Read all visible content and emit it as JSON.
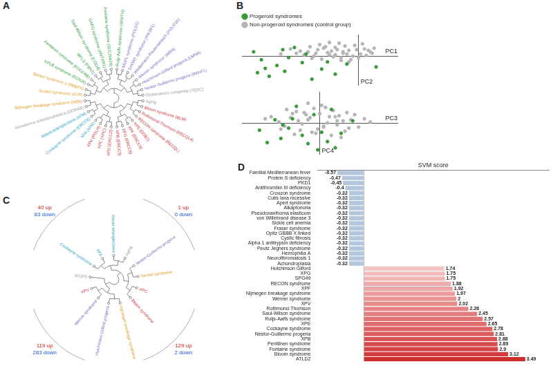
{
  "panel_labels": [
    "A",
    "B",
    "C",
    "D"
  ],
  "dendrograms": [
    {
      "leaves": [
        {
          "label": "Seckel syndrome (ATR)",
          "color": "#e0a020"
        },
        {
          "label": "Seckel syndrome 2 (RBBP8)",
          "color": "#e0a020"
        },
        {
          "label": "KPLB syndrome (KCNJ6)",
          "color": "#2e9e3e"
        },
        {
          "label": "Penttinen syndrome (PDGFRB)",
          "color": "#2e9e3e"
        },
        {
          "label": "MFLS (FBN1)",
          "color": "#2e9e3e"
        },
        {
          "label": "Saul-Wilson syndrome (COG4)",
          "color": "#2e9e3e"
        },
        {
          "label": "GAPO syndrome (ANTXR1)",
          "color": "#2e9e3e"
        },
        {
          "label": "Fontaine syndrome (SLC25A24)",
          "color": "#2e9e3e"
        },
        {
          "label": "Ruijs-Aalfs syndrome (SPRTN)",
          "color": "#2e9e3e"
        },
        {
          "label": "MDPL syndrome (POLD1)",
          "color": "#7b6fc4"
        },
        {
          "label": "SHORT syndrome (PIK3R1)",
          "color": "#7b6fc4"
        },
        {
          "label": "Wiedemann-Rautenstrauch (POLR3A)",
          "color": "#7b6fc4"
        },
        {
          "label": "Werner syndrome (WRN)",
          "color": "#7b6fc4"
        },
        {
          "label": "Hutchinson-Gilford progeria (LMNA)",
          "color": "#7b6fc4"
        },
        {
          "label": "Nestor-Guillermo progeria (BANF1)",
          "color": "#7b6fc4"
        },
        {
          "label": "Dyskeratosis congenita (TERC)",
          "color": "#a0a0a0"
        },
        {
          "label": "Aging",
          "color": "#a0a0a0"
        },
        {
          "label": "Bloom syndrome (BLM)",
          "color": "#c8323c"
        },
        {
          "label": "Rothmund-Thomson (RECQL4)",
          "color": "#c8323c"
        },
        {
          "label": "RECON syndrome (RECQL)",
          "color": "#c8323c"
        },
        {
          "label": "XPE (DDB2)",
          "color": "#c8323c"
        },
        {
          "label": "XPF (ERCC4)",
          "color": "#c8323c"
        },
        {
          "label": "XPG (ERCC5)",
          "color": "#c8323c"
        },
        {
          "label": "XPB (ERCC3)",
          "color": "#c8323c"
        },
        {
          "label": "XPD (ERCC2)",
          "color": "#c8323c"
        },
        {
          "label": "XPC (XPC)",
          "color": "#c8323c"
        },
        {
          "label": "XPV (POLH)",
          "color": "#c8323c"
        },
        {
          "label": "XPA (XPA)",
          "color": "#2aa4c8"
        },
        {
          "label": "Cockayne syndrome (ERCC8)",
          "color": "#2aa4c8"
        },
        {
          "label": "Ataxia-telangiectasia (ATM)",
          "color": "#2aa4c8"
        },
        {
          "label": "Geroderma osteodysplastica (GORAB)",
          "color": "#a0a0a0"
        },
        {
          "label": "Nijmegen breakage syndrome (NBN)",
          "color": "#e0a020"
        }
      ]
    },
    {
      "leaves": [
        {
          "label": "Cockayne syndrome",
          "color": "#2aa4c8"
        },
        {
          "label": "XPA",
          "color": "#2aa4c8"
        },
        {
          "label": "Ataxia-telangiectasia",
          "color": "#2aa4c8"
        },
        {
          "label": "Aging",
          "color": "#a0a0a0"
        },
        {
          "label": "Nestor-Guillermo progeria",
          "color": "#7b6fc4"
        },
        {
          "label": "Seckel syndrome",
          "color": "#e0a020"
        },
        {
          "label": "XPC",
          "color": "#c8323c"
        },
        {
          "label": "Bloom syndrome",
          "color": "#c8323c"
        },
        {
          "label": "Nijmegen breakage syndrome",
          "color": "#e0a020"
        },
        {
          "label": "Hutchinson-Gilford progeria",
          "color": "#7b6fc4"
        },
        {
          "label": "Werner syndrome",
          "color": "#7b6fc4"
        },
        {
          "label": "XPV",
          "color": "#c8323c"
        },
        {
          "label": "BIOFS",
          "color": "#a0a0a0"
        }
      ],
      "annotations": [
        {
          "up": "40 up",
          "down": "83 down"
        },
        {
          "up": "1 up",
          "down": "0 down"
        },
        {
          "up": "119 up",
          "down": "283 down"
        },
        {
          "up": "129 up",
          "down": "2 down"
        }
      ]
    }
  ],
  "chart_data": [
    {
      "type": "scatter",
      "x_label": "PC1",
      "y_label": "PC2",
      "xlim": [
        -6,
        2
      ],
      "ylim": [
        -4,
        3
      ],
      "xticks": [
        0
      ],
      "yticks": [
        0
      ],
      "tick_labels": false,
      "grid": false,
      "legend": "top-left",
      "series": [
        {
          "name": "Progeroid syndromes",
          "color": "#3a9a3a",
          "x": [
            -5.0,
            -4.2,
            -3.8,
            -2.9,
            -4.6,
            -3.3,
            -1.9,
            -5.4,
            -2.4,
            -3.6,
            -1.2,
            -4.8,
            -2.7,
            -0.6,
            -3.9,
            -1.6,
            -5.2,
            0.9
          ],
          "values": [
            -0.5,
            -1.3,
            -2.1,
            -0.9,
            -2.8,
            1.2,
            -1.8,
            0.6,
            -3.2,
            -0.2,
            -2.5,
            -1.7,
            0.3,
            -1.1,
            0.9,
            -0.8,
            -2.3,
            -1.5
          ]
        },
        {
          "name": "Non-progeroid syndromes (control group)",
          "color": "#b5b5b5",
          "x": [
            -0.5,
            -1.2,
            -0.8,
            0.3,
            -2.1,
            -1.5,
            0.6,
            -0.2,
            -3.0,
            -1.8,
            -0.9,
            0.1,
            -2.5,
            -1.1,
            0.8,
            -0.4,
            -1.6,
            -2.8,
            -0.7,
            0.4,
            -1.3,
            -2.2,
            -0.1,
            -3.5,
            -1.9,
            0.2,
            -0.6,
            -1.0,
            -2.4,
            -1.4,
            0.5,
            -0.3,
            -2.0,
            -1.7,
            -0.8,
            -3.2,
            -1.2,
            0.0,
            -2.6,
            -0.5,
            -4.0,
            -1.5,
            -0.9,
            -2.3,
            0.7
          ],
          "values": [
            0.8,
            1.2,
            0.4,
            1.0,
            0.9,
            0.2,
            0.6,
            1.5,
            0.7,
            1.1,
            -0.2,
            0.3,
            1.3,
            0.9,
            1.1,
            -0.5,
            0.5,
            0.2,
            1.4,
            0.1,
            -0.1,
            0.4,
            0.9,
            1.0,
            -0.4,
            1.7,
            0.3,
            1.8,
            -0.3,
            0.7,
            0.8,
            0.0,
            1.6,
            1.3,
            0.6,
            0.4,
            0.2,
            -0.2,
            0.6,
            -0.8,
            0.3,
            1.9,
            -0.6,
            0.0,
            0.4
          ]
        }
      ]
    },
    {
      "type": "scatter",
      "x_label": "PC3",
      "y_label": "PC4",
      "xlim": [
        -4,
        4
      ],
      "ylim": [
        -3,
        3
      ],
      "xticks": [
        0
      ],
      "yticks": [
        0
      ],
      "tick_labels": false,
      "grid": false,
      "series": [
        {
          "name": "Progeroid syndromes",
          "color": "#3a9a3a",
          "x": [
            -0.9,
            -1.6,
            0.4,
            -2.3,
            -0.3,
            1.1,
            -1.2,
            -3.1,
            0.8,
            -0.6,
            -2.0,
            1.7,
            -1.4,
            0.1,
            -2.7,
            0.6,
            -0.1,
            -1.9
          ],
          "values": [
            -1.2,
            -0.5,
            -1.8,
            0.3,
            0.8,
            -1.0,
            1.6,
            -0.7,
            -2.4,
            -2.0,
            -1.5,
            0.2,
            0.4,
            -0.9,
            -1.9,
            1.3,
            -2.6,
            -0.2
          ]
        },
        {
          "name": "Non-progeroid syndromes (control group)",
          "color": "#b5b5b5",
          "x": [
            0.5,
            -0.8,
            1.2,
            -1.5,
            0.2,
            -0.3,
            1.8,
            -2.1,
            0.9,
            -1.0,
            0.0,
            1.5,
            -0.6,
            2.3,
            -1.8,
            0.7,
            -0.2,
            1.0,
            -1.2,
            0.4,
            -2.5,
            1.3,
            -0.9,
            0.1,
            2.0,
            -1.4,
            0.6,
            -0.5,
            1.6,
            -2.0,
            0.3,
            -1.1,
            2.6,
            -0.4,
            0.8,
            -1.7,
            1.1,
            -0.7,
            0.2,
            -2.8,
            1.4,
            -0.1,
            -1.3,
            0.9,
            -0.6
          ],
          "values": [
            0.6,
            1.0,
            0.2,
            0.5,
            -0.4,
            1.4,
            0.8,
            0.1,
            -0.2,
            -0.7,
            0.9,
            -0.5,
            0.3,
            0.4,
            -0.3,
            1.2,
            -1.0,
            0.7,
            1.1,
            0.0,
            0.6,
            -0.8,
            -0.1,
            1.7,
            -0.4,
            0.9,
            -1.2,
            0.5,
            0.3,
            -0.6,
            1.5,
            0.2,
            0.1,
            -0.9,
            0.6,
            1.3,
            -1.4,
            0.8,
            -0.3,
            0.4,
            1.0,
            -0.6,
            -1.1,
            0.2,
            1.9
          ]
        }
      ]
    },
    {
      "type": "bar",
      "orientation": "horizontal",
      "x_label": "SVM score",
      "xlim": [
        -1,
        4
      ],
      "xticks": [
        0
      ],
      "grid": true,
      "tick_labels": "y",
      "data_labels": true,
      "categories": [
        "Familial Mediterranean fever",
        "Protein S deficiency",
        "PKD1",
        "Antithrombin III deficiency",
        "Crouzon syndrome",
        "Cutis laxa recessive",
        "Apert syndrome",
        "Alkaptonuria",
        "Pseudoxanthoma elasticum",
        "von Willebrand disease 3",
        "Sickle cell anemia",
        "Fraser syndrome",
        "Opitz GBBB X linked",
        "Cystic fibrosis",
        "Alpha 1 antitrypsin deficiency",
        "Peutz Jeghers syndrome",
        "Hemophilia A",
        "Neurofibromatosis 1",
        "Achondroplasia",
        "Hutchinson Gilford",
        "XPG",
        "SPG49",
        "RECON syndrome",
        "XPF",
        "Nijmegen breakage syndrome",
        "Werner syndrome",
        "XPV",
        "Rothmund-Thomson",
        "Saul-Wilson syndrome",
        "Ruijs-Aalfs syndrome",
        "XPE",
        "Cockayne syndrome",
        "Nestor-Guillermo progeria",
        "XPB",
        "Penttinen syndrome",
        "Fontaine syndrome",
        "Bloom syndrome",
        "ATLD2"
      ],
      "values": [
        -0.57,
        -0.47,
        -0.45,
        -0.4,
        -0.32,
        -0.32,
        -0.32,
        -0.32,
        -0.32,
        -0.32,
        -0.32,
        -0.32,
        -0.32,
        -0.32,
        -0.32,
        -0.32,
        -0.32,
        -0.32,
        -0.32,
        1.74,
        1.75,
        1.75,
        1.88,
        1.92,
        1.97,
        2,
        2.02,
        2.26,
        2.45,
        2.57,
        2.65,
        2.78,
        2.81,
        2.88,
        2.89,
        2.9,
        3.12,
        3.49
      ],
      "colors": [
        "#b4c6dc",
        "#b4c6dc",
        "#b4c6dc",
        "#b4c6dc",
        "#b4c6dc",
        "#b4c6dc",
        "#b4c6dc",
        "#b4c6dc",
        "#b4c6dc",
        "#b4c6dc",
        "#b4c6dc",
        "#b4c6dc",
        "#b4c6dc",
        "#b4c6dc",
        "#b4c6dc",
        "#b4c6dc",
        "#b4c6dc",
        "#b4c6dc",
        "#b4c6dc",
        "#f4c4c4",
        "#f2bcbc",
        "#f0b4b4",
        "#eeacac",
        "#eca4a4",
        "#ea9c9c",
        "#e89494",
        "#e68c8c",
        "#e48484",
        "#e27c7c",
        "#e07474",
        "#de6c6c",
        "#dc6464",
        "#da5c5c",
        "#d85454",
        "#d64c4c",
        "#d44444",
        "#d23c3c",
        "#cc2e2e"
      ]
    }
  ]
}
